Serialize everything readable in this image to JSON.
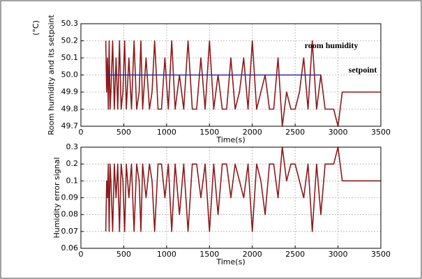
{
  "chart_data": [
    {
      "type": "line",
      "y_label": "Room humidity and its setpoint",
      "y_unit": "(°C)",
      "x_label": "Time(s)",
      "x": [
        290,
        300,
        310,
        320,
        330,
        340,
        350,
        370,
        390,
        410,
        430,
        450,
        470,
        490,
        510,
        530,
        560,
        590,
        620,
        650,
        680,
        700,
        720,
        760,
        800,
        830,
        860,
        900,
        940,
        980,
        1020,
        1060,
        1100,
        1150,
        1200,
        1250,
        1300,
        1350,
        1400,
        1450,
        1500,
        1550,
        1600,
        1650,
        1700,
        1750,
        1800,
        1850,
        1900,
        1950,
        2000,
        2050,
        2100,
        2150,
        2200,
        2250,
        2300,
        2350,
        2400,
        2450,
        2500,
        2550,
        2600,
        2650,
        2700,
        2750,
        2800,
        2850,
        2900,
        2950,
        3000,
        3050,
        3100,
        3500
      ],
      "series": [
        {
          "name": "room humidity",
          "color": "#8b1a1a",
          "values": [
            50.2,
            49.9,
            50.1,
            49.8,
            50.2,
            49.8,
            49.9,
            50.2,
            49.8,
            50.1,
            49.8,
            50.2,
            49.8,
            49.9,
            50.2,
            49.8,
            50.1,
            49.8,
            50.2,
            49.8,
            49.9,
            50.2,
            49.8,
            50.1,
            49.8,
            49.9,
            50.2,
            49.8,
            49.8,
            50.1,
            49.8,
            50.2,
            49.8,
            50.0,
            49.8,
            50.2,
            49.8,
            49.8,
            50.1,
            49.8,
            50.2,
            49.8,
            50.0,
            49.8,
            49.8,
            50.1,
            49.8,
            49.9,
            50.1,
            49.8,
            50.2,
            49.8,
            49.9,
            50.0,
            49.8,
            49.8,
            50.1,
            49.7,
            49.9,
            49.8,
            49.8,
            49.9,
            50.1,
            49.8,
            50.2,
            49.8,
            50.0,
            49.8,
            49.8,
            49.8,
            49.7,
            49.9,
            49.9,
            49.9
          ]
        },
        {
          "name": "setpoint",
          "color": "#2b2b9a",
          "values": [
            50,
            50,
            50,
            50,
            50,
            50,
            50,
            50,
            50,
            50,
            50,
            50,
            50,
            50,
            50,
            50,
            50,
            50,
            50,
            50,
            50,
            50,
            50,
            50,
            50,
            50,
            50,
            50,
            50,
            50,
            50,
            50,
            50,
            50,
            50,
            50,
            50,
            50,
            50,
            50,
            50,
            50,
            50,
            50,
            50,
            50,
            50,
            50,
            50,
            50,
            50,
            50,
            50,
            50,
            50,
            50,
            50,
            50,
            50,
            50,
            50,
            50,
            50,
            50,
            50,
            50,
            50,
            null,
            null,
            null,
            null,
            null,
            null,
            null
          ]
        }
      ],
      "xlim": [
        0,
        3500
      ],
      "xticks": [
        0,
        500,
        1000,
        1500,
        2000,
        2500,
        3000,
        3500
      ],
      "ylim": [
        49.7,
        50.3
      ],
      "yticks": [
        49.7,
        49.8,
        49.9,
        {
          "value": 50,
          "label": "50.0"
        },
        50.1,
        50.2,
        50.3
      ],
      "grid": true
    },
    {
      "type": "line",
      "y_label": "Humidity error signal",
      "x_label": "Time(s)",
      "x": [
        290,
        300,
        310,
        320,
        330,
        340,
        350,
        370,
        390,
        410,
        430,
        450,
        470,
        490,
        510,
        530,
        560,
        590,
        620,
        650,
        680,
        700,
        720,
        760,
        800,
        830,
        860,
        900,
        940,
        980,
        1020,
        1060,
        1100,
        1150,
        1200,
        1250,
        1300,
        1350,
        1400,
        1450,
        1500,
        1550,
        1600,
        1650,
        1700,
        1750,
        1800,
        1850,
        1900,
        1950,
        2000,
        2050,
        2100,
        2150,
        2200,
        2250,
        2300,
        2350,
        2400,
        2450,
        2500,
        2550,
        2600,
        2650,
        2700,
        2750,
        2800,
        2850,
        2900,
        2950,
        3000,
        3050,
        3100,
        3500
      ],
      "series": [
        {
          "color": "#8b1a1a",
          "values": [
            0.07,
            0.1,
            0.09,
            0.2,
            0.07,
            0.2,
            0.1,
            0.07,
            0.2,
            0.09,
            0.2,
            0.07,
            0.2,
            0.1,
            0.07,
            0.2,
            0.09,
            0.2,
            0.07,
            0.2,
            0.1,
            0.07,
            0.2,
            0.09,
            0.2,
            0.1,
            0.07,
            0.2,
            0.2,
            0.09,
            0.2,
            0.07,
            0.2,
            0.08,
            0.2,
            0.07,
            0.2,
            0.2,
            0.09,
            0.2,
            0.07,
            0.2,
            0.08,
            0.2,
            0.2,
            0.09,
            0.2,
            0.1,
            0.09,
            0.2,
            0.07,
            0.2,
            0.1,
            0.08,
            0.2,
            0.2,
            0.09,
            0.3,
            0.1,
            0.2,
            0.2,
            0.1,
            0.09,
            0.2,
            0.07,
            0.2,
            0.08,
            0.2,
            0.2,
            0.2,
            0.3,
            0.1,
            0.1,
            0.1
          ]
        }
      ],
      "xlim": [
        0,
        3500
      ],
      "xticks": [
        0,
        500,
        1000,
        1500,
        2000,
        2500,
        3000,
        3500
      ],
      "ylim": [
        0.06,
        0.3
      ],
      "yticks": [
        0.06,
        0.07,
        0.08,
        0.09,
        0.1,
        0.2,
        0.3
      ],
      "grid": true
    }
  ]
}
